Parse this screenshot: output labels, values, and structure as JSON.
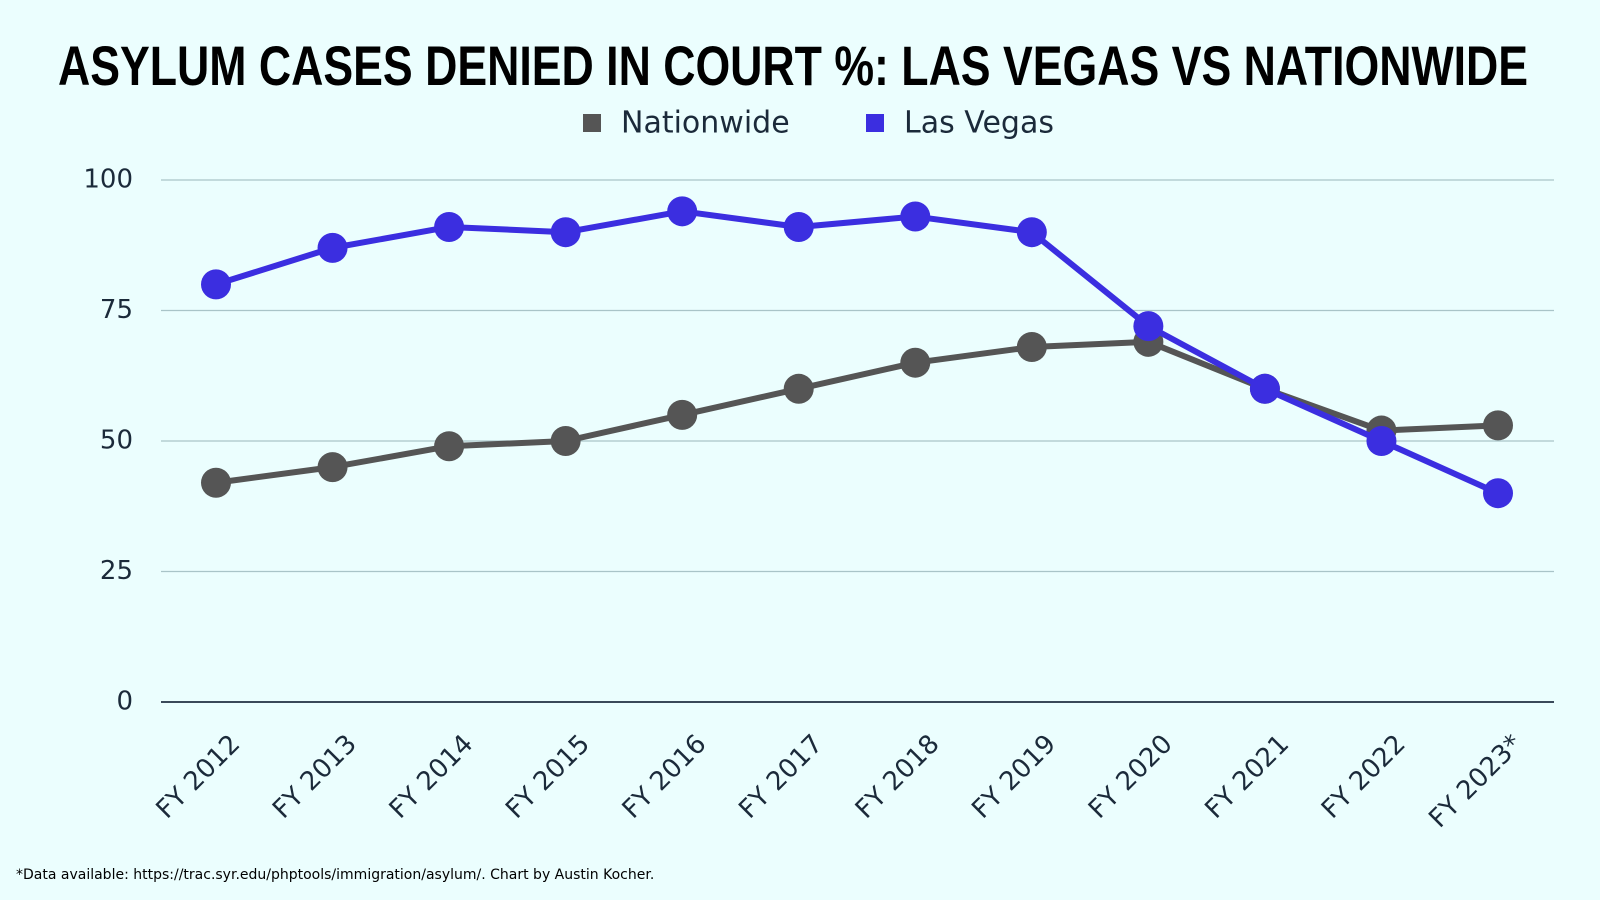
{
  "chart_data": {
    "type": "line",
    "title": "ASYLUM CASES DENIED IN COURT %: LAS VEGAS VS NATIONWIDE",
    "categories": [
      "FY 2012",
      "FY 2013",
      "FY 2014",
      "FY 2015",
      "FY 2016",
      "FY 2017",
      "FY 2018",
      "FY 2019",
      "FY 2020",
      "FY 2021",
      "FY 2022",
      "FY 2023*"
    ],
    "series": [
      {
        "name": "Nationwide",
        "color": "#555555",
        "values": [
          42,
          45,
          49,
          50,
          55,
          60,
          65,
          68,
          69,
          60,
          52,
          53
        ]
      },
      {
        "name": "Las Vegas",
        "color": "#3b2ee0",
        "values": [
          80,
          87,
          91,
          90,
          94,
          91,
          93,
          90,
          72,
          60,
          50,
          40
        ]
      }
    ],
    "ylim": [
      0,
      100
    ],
    "yticks": [
      0,
      25,
      50,
      75,
      100
    ],
    "grid": true,
    "legend": "top",
    "footnote": "*Data available: https://trac.syr.edu/phptools/immigration/asylum/. Chart by Austin Kocher."
  }
}
